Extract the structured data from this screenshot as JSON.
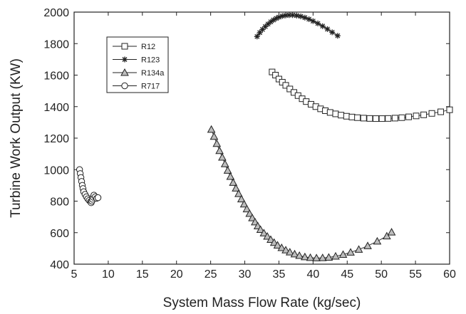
{
  "chart_data": {
    "type": "scatter",
    "xlabel": "System Mass Flow Rate (kg/sec)",
    "ylabel": "Turbine Work Output (KW)",
    "xlim": [
      5,
      60
    ],
    "ylim": [
      400,
      2000
    ],
    "xticks": [
      "5",
      "10",
      "15",
      "20",
      "25",
      "30",
      "35",
      "40",
      "45",
      "50",
      "55",
      "60"
    ],
    "yticks": [
      "400",
      "600",
      "800",
      "1000",
      "1200",
      "1400",
      "1600",
      "1800",
      "2000"
    ],
    "grid": false,
    "legend_position": "top-left",
    "series": [
      {
        "name": "R12",
        "marker": "square",
        "values": [
          [
            34.0,
            1620
          ],
          [
            34.5,
            1600
          ],
          [
            35.0,
            1575
          ],
          [
            35.5,
            1555
          ],
          [
            36.0,
            1535
          ],
          [
            36.6,
            1512
          ],
          [
            37.2,
            1490
          ],
          [
            37.8,
            1470
          ],
          [
            38.4,
            1450
          ],
          [
            39.0,
            1432
          ],
          [
            39.7,
            1415
          ],
          [
            40.4,
            1400
          ],
          [
            41.1,
            1386
          ],
          [
            41.8,
            1374
          ],
          [
            42.5,
            1363
          ],
          [
            43.3,
            1354
          ],
          [
            44.1,
            1346
          ],
          [
            44.9,
            1339
          ],
          [
            45.7,
            1334
          ],
          [
            46.5,
            1330
          ],
          [
            47.4,
            1327
          ],
          [
            48.3,
            1325
          ],
          [
            49.2,
            1324
          ],
          [
            50.1,
            1324
          ],
          [
            51.0,
            1325
          ],
          [
            52.0,
            1327
          ],
          [
            53.0,
            1330
          ],
          [
            54.0,
            1335
          ],
          [
            55.1,
            1341
          ],
          [
            56.2,
            1348
          ],
          [
            57.4,
            1357
          ],
          [
            58.7,
            1367
          ],
          [
            60.0,
            1380
          ]
        ]
      },
      {
        "name": "R123",
        "marker": "star",
        "values": [
          [
            31.8,
            1845
          ],
          [
            32.2,
            1870
          ],
          [
            32.6,
            1890
          ],
          [
            33.0,
            1908
          ],
          [
            33.4,
            1924
          ],
          [
            33.8,
            1938
          ],
          [
            34.2,
            1950
          ],
          [
            34.6,
            1960
          ],
          [
            35.0,
            1968
          ],
          [
            35.5,
            1975
          ],
          [
            36.0,
            1979
          ],
          [
            36.5,
            1981
          ],
          [
            37.0,
            1981
          ],
          [
            37.6,
            1978
          ],
          [
            38.2,
            1973
          ],
          [
            38.8,
            1965
          ],
          [
            39.4,
            1955
          ],
          [
            40.0,
            1943
          ],
          [
            40.7,
            1928
          ],
          [
            41.4,
            1911
          ],
          [
            42.1,
            1892
          ],
          [
            42.8,
            1872
          ],
          [
            43.6,
            1850
          ]
        ]
      },
      {
        "name": "R134a",
        "marker": "triangle",
        "values": [
          [
            25.1,
            1255
          ],
          [
            25.5,
            1210
          ],
          [
            25.9,
            1165
          ],
          [
            26.3,
            1120
          ],
          [
            26.7,
            1078
          ],
          [
            27.1,
            1036
          ],
          [
            27.5,
            995
          ],
          [
            27.9,
            956
          ],
          [
            28.3,
            918
          ],
          [
            28.7,
            882
          ],
          [
            29.1,
            847
          ],
          [
            29.5,
            813
          ],
          [
            29.9,
            781
          ],
          [
            30.3,
            750
          ],
          [
            30.7,
            721
          ],
          [
            31.1,
            693
          ],
          [
            31.5,
            667
          ],
          [
            31.9,
            642
          ],
          [
            32.3,
            619
          ],
          [
            32.8,
            597
          ],
          [
            33.3,
            576
          ],
          [
            33.8,
            556
          ],
          [
            34.3,
            537
          ],
          [
            34.8,
            520
          ],
          [
            35.4,
            504
          ],
          [
            36.0,
            489
          ],
          [
            36.6,
            476
          ],
          [
            37.3,
            464
          ],
          [
            38.0,
            454
          ],
          [
            38.8,
            446
          ],
          [
            39.6,
            441
          ],
          [
            40.5,
            439
          ],
          [
            41.4,
            440
          ],
          [
            42.3,
            443
          ],
          [
            43.3,
            450
          ],
          [
            44.4,
            461
          ],
          [
            45.5,
            475
          ],
          [
            46.7,
            493
          ],
          [
            48.0,
            516
          ],
          [
            49.4,
            545
          ],
          [
            50.8,
            578
          ],
          [
            51.5,
            603
          ]
        ]
      },
      {
        "name": "R717",
        "marker": "circle",
        "values": [
          [
            5.8,
            1000
          ],
          [
            5.9,
            975
          ],
          [
            6.0,
            950
          ],
          [
            6.1,
            925
          ],
          [
            6.2,
            900
          ],
          [
            6.3,
            880
          ],
          [
            6.4,
            860
          ],
          [
            6.6,
            843
          ],
          [
            6.8,
            828
          ],
          [
            7.0,
            815
          ],
          [
            7.2,
            805
          ],
          [
            7.4,
            796
          ],
          [
            7.5,
            790
          ],
          [
            7.6,
            800
          ],
          [
            7.7,
            812
          ],
          [
            7.8,
            825
          ],
          [
            7.9,
            838
          ],
          [
            8.1,
            828
          ],
          [
            8.3,
            818
          ],
          [
            8.5,
            822
          ]
        ]
      }
    ]
  }
}
